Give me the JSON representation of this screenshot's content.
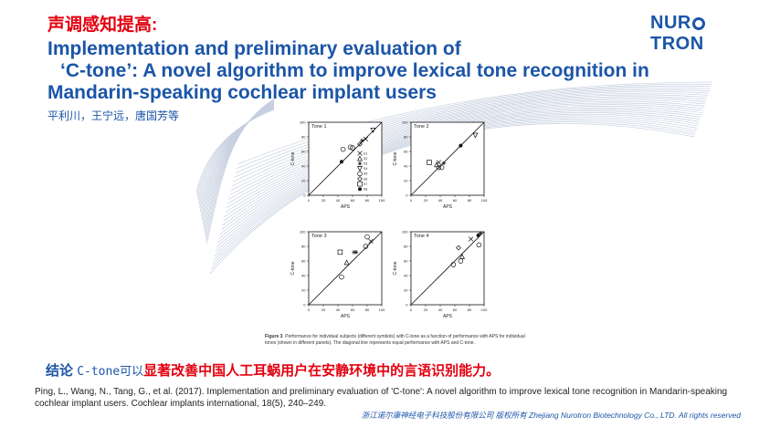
{
  "header": {
    "title_zh": "声调感知提高:",
    "title_en_line1": "Implementation and preliminary evaluation of",
    "title_en_line2": "‘C-tone’: A novel algorithm to improve lexical tone recognition in",
    "title_en_line3": "Mandarin-speaking cochlear implant users",
    "authors": "平利川，王宁远，唐国芳等"
  },
  "logo": {
    "part1": "NUR",
    "part2": "TRON",
    "icon": "o-ring-icon",
    "color": "#1b55a8"
  },
  "figure": {
    "caption_label": "Figure 3",
    "caption_text": "Performance for individual subjects (different symbols) with C-tone as a function of performance with APS for individual tones (shown in different panels). The diagonal line represents equal performance with APS and C-tone.",
    "x_label": "APS",
    "y_label": "C-tone",
    "ticks": [
      "0",
      "20",
      "40",
      "60",
      "80",
      "100"
    ],
    "legend_labels": [
      "S1",
      "S2",
      "S3",
      "S4",
      "S5",
      "S6",
      "S7",
      "S8"
    ]
  },
  "chart_data": [
    {
      "type": "scatter",
      "title": "Tone 1",
      "xlabel": "APS",
      "ylabel": "C-tone",
      "xlim": [
        0,
        100
      ],
      "ylim": [
        0,
        100
      ],
      "points": [
        {
          "x": 45,
          "y": 46,
          "m": "filled-circle"
        },
        {
          "x": 47,
          "y": 63,
          "m": "circle"
        },
        {
          "x": 57,
          "y": 66,
          "m": "circle"
        },
        {
          "x": 60,
          "y": 65,
          "m": "circle"
        },
        {
          "x": 70,
          "y": 70,
          "m": "diamond"
        },
        {
          "x": 73,
          "y": 75,
          "m": "star"
        },
        {
          "x": 78,
          "y": 77,
          "m": "cross"
        },
        {
          "x": 88,
          "y": 89,
          "m": "triangle-down"
        }
      ]
    },
    {
      "type": "scatter",
      "title": "Tone 2",
      "xlabel": "APS",
      "ylabel": "C-tone",
      "xlim": [
        0,
        100
      ],
      "ylim": [
        0,
        100
      ],
      "points": [
        {
          "x": 25,
          "y": 45,
          "m": "square"
        },
        {
          "x": 35,
          "y": 42,
          "m": "triangle-up"
        },
        {
          "x": 38,
          "y": 45,
          "m": "cross"
        },
        {
          "x": 38,
          "y": 38,
          "m": "circle"
        },
        {
          "x": 42,
          "y": 38,
          "m": "circle"
        },
        {
          "x": 45,
          "y": 44,
          "m": "star"
        },
        {
          "x": 68,
          "y": 68,
          "m": "filled-circle"
        },
        {
          "x": 88,
          "y": 82,
          "m": "triangle-down"
        }
      ]
    },
    {
      "type": "scatter",
      "title": "Tone 3",
      "xlabel": "APS",
      "ylabel": "C-tone",
      "xlim": [
        0,
        100
      ],
      "ylim": [
        0,
        100
      ],
      "points": [
        {
          "x": 45,
          "y": 38,
          "m": "circle"
        },
        {
          "x": 43,
          "y": 72,
          "m": "square"
        },
        {
          "x": 52,
          "y": 58,
          "m": "triangle-up"
        },
        {
          "x": 62,
          "y": 72,
          "m": "star"
        },
        {
          "x": 65,
          "y": 72,
          "m": "star"
        },
        {
          "x": 78,
          "y": 80,
          "m": "circle"
        },
        {
          "x": 80,
          "y": 93,
          "m": "circle"
        },
        {
          "x": 85,
          "y": 87,
          "m": "cross"
        }
      ]
    },
    {
      "type": "scatter",
      "title": "Tone 4",
      "xlabel": "APS",
      "ylabel": "C-tone",
      "xlim": [
        0,
        100
      ],
      "ylim": [
        0,
        100
      ],
      "points": [
        {
          "x": 58,
          "y": 55,
          "m": "circle"
        },
        {
          "x": 68,
          "y": 60,
          "m": "circle"
        },
        {
          "x": 70,
          "y": 66,
          "m": "triangle-up"
        },
        {
          "x": 65,
          "y": 78,
          "m": "diamond"
        },
        {
          "x": 82,
          "y": 90,
          "m": "cross"
        },
        {
          "x": 92,
          "y": 95,
          "m": "filled-circle"
        },
        {
          "x": 95,
          "y": 98,
          "m": "star"
        },
        {
          "x": 93,
          "y": 82,
          "m": "circle"
        }
      ]
    }
  ],
  "conclusion": {
    "label": "结论",
    "part1": "C-tone可以",
    "part2": "显著改善中国人工耳蜗用户在安静环境中的言语识别能力。"
  },
  "citation": "Ping, L., Wang, N., Tang, G., et al. (2017). Implementation and preliminary evaluation of 'C-tone': A novel algorithm to improve lexical tone recognition in Mandarin-speaking cochlear implant users. Cochlear implants international, 18(5), 240–249.",
  "footer": "浙江诺尔康神经电子科技股份有限公司 版权所有 Zhejiang Nurotron Biotechnology Co., LTD. All rights reserved",
  "colors": {
    "title_red": "#e3000f",
    "brand_blue": "#1b55a8"
  }
}
